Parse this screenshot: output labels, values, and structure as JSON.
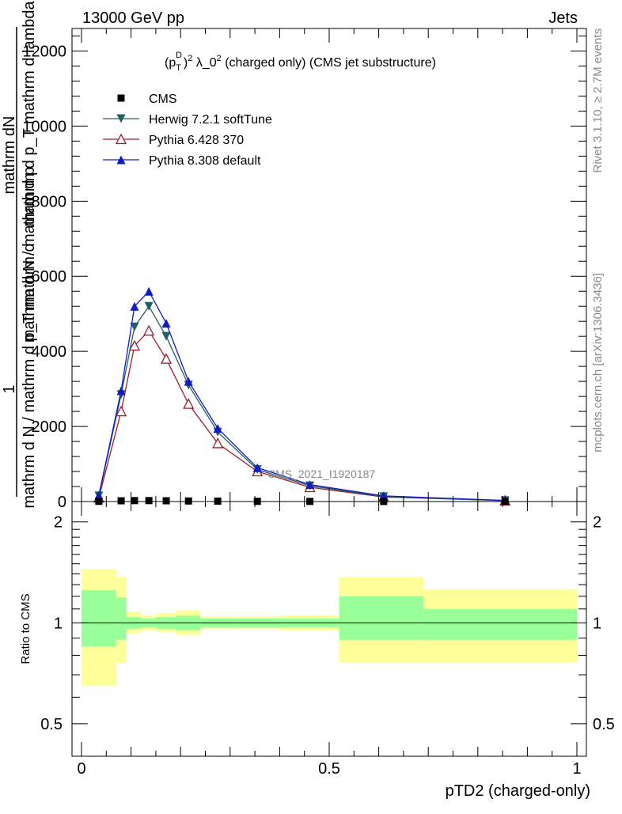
{
  "header": {
    "left": "13000 GeV pp",
    "right": "Jets",
    "side_top": "Rivet 3.1.10, ≥ 2.7M events",
    "side_bottom": "mcplots.cern.ch [arXiv:1306.3436]"
  },
  "chart_data": [
    {
      "type": "line",
      "title": "(p_T^D)^2 λ_0^2 (charged only) (CMS jet substructure)",
      "title_parts": {
        "base": "(p",
        "sub": "T",
        "sup": "D",
        "mid": ")",
        "sup2": "2",
        "rest": " λ_0",
        "sup3": "2",
        "end": " (charged only) (CMS jet substructure)"
      },
      "ylabel_parts": {
        "line1": "1",
        "numerator": "mathrm dN",
        "denominator": "mathrm d p_T mathrm d lambda",
        "left": "mathrm d N / mathrm d p_T mathrm d",
        "left_sub": "T",
        "lower": "mathrm d N / mathrm d p"
      },
      "watermark": "CMS_2021_I1920187",
      "xlim": [
        0,
        1
      ],
      "ylim": [
        0,
        12600
      ],
      "yticks": [
        0,
        2000,
        4000,
        6000,
        8000,
        10000,
        12000
      ],
      "ytick_labels": [
        "0",
        "2000",
        "4000",
        "6000",
        "8000",
        "10000",
        "12000"
      ],
      "legend_placement": "top-left",
      "series": [
        {
          "name": "CMS",
          "marker": "square",
          "color": "#000000",
          "x": [
            0.035,
            0.08,
            0.107,
            0.136,
            0.171,
            0.216,
            0.275,
            0.355,
            0.461,
            0.61,
            0.855
          ],
          "y": [
            5,
            20,
            25,
            25,
            20,
            15,
            10,
            5,
            3,
            1,
            0
          ]
        },
        {
          "name": "Herwig 7.2.1 softTune",
          "marker": "triangle-down",
          "color": "#20605f",
          "x": [
            0.035,
            0.08,
            0.107,
            0.136,
            0.171,
            0.216,
            0.275,
            0.355,
            0.461,
            0.61,
            0.855
          ],
          "y": [
            150,
            2850,
            4650,
            5200,
            4400,
            3100,
            1850,
            850,
            420,
            130,
            25
          ]
        },
        {
          "name": "Pythia 6.428 370",
          "marker": "triangle-up-open",
          "color": "#a01c2c",
          "x": [
            0.035,
            0.08,
            0.107,
            0.136,
            0.171,
            0.216,
            0.275,
            0.355,
            0.461,
            0.61,
            0.855
          ],
          "y": [
            100,
            2400,
            4150,
            4550,
            3800,
            2600,
            1550,
            800,
            380,
            120,
            25
          ]
        },
        {
          "name": "Pythia 8.308 default",
          "marker": "triangle-up",
          "color": "#0f1cc8",
          "x": [
            0.035,
            0.08,
            0.107,
            0.136,
            0.171,
            0.216,
            0.275,
            0.355,
            0.461,
            0.61,
            0.855
          ],
          "y": [
            170,
            2950,
            5200,
            5600,
            4750,
            3200,
            1950,
            900,
            450,
            150,
            30
          ]
        }
      ]
    },
    {
      "type": "area",
      "ylabel": "Ratio to CMS",
      "xlabel": "pTD2 (charged-only)",
      "xlim": [
        0,
        1
      ],
      "ylim": [
        0.4,
        2.3
      ],
      "yscale": "log",
      "yticks": [
        0.5,
        1,
        2
      ],
      "ytick_labels": [
        "0.5",
        "1",
        "2"
      ],
      "xticks": [
        0,
        0.5,
        1
      ],
      "xtick_labels": [
        "0",
        "0.5",
        "1"
      ],
      "reference_line": 1,
      "bands": {
        "bin_edges": [
          0,
          0.07,
          0.09,
          0.12,
          0.15,
          0.19,
          0.24,
          0.31,
          0.4,
          0.52,
          0.69,
          1.0
        ],
        "outer_color": "#ffff99",
        "inner_color": "#99ff99",
        "outer_low": [
          0.65,
          0.76,
          0.93,
          0.95,
          0.94,
          0.92,
          0.96,
          0.96,
          0.95,
          0.76,
          0.76,
          0.84
        ],
        "outer_high": [
          1.45,
          1.37,
          1.08,
          1.05,
          1.07,
          1.09,
          1.04,
          1.04,
          1.05,
          1.37,
          1.26,
          1.26
        ],
        "inner_low": [
          0.85,
          0.89,
          0.96,
          0.97,
          0.96,
          0.95,
          0.97,
          0.97,
          0.97,
          0.89,
          0.89,
          0.92
        ],
        "inner_high": [
          1.25,
          1.19,
          1.04,
          1.03,
          1.04,
          1.05,
          1.03,
          1.03,
          1.03,
          1.2,
          1.1,
          1.1
        ]
      }
    }
  ]
}
